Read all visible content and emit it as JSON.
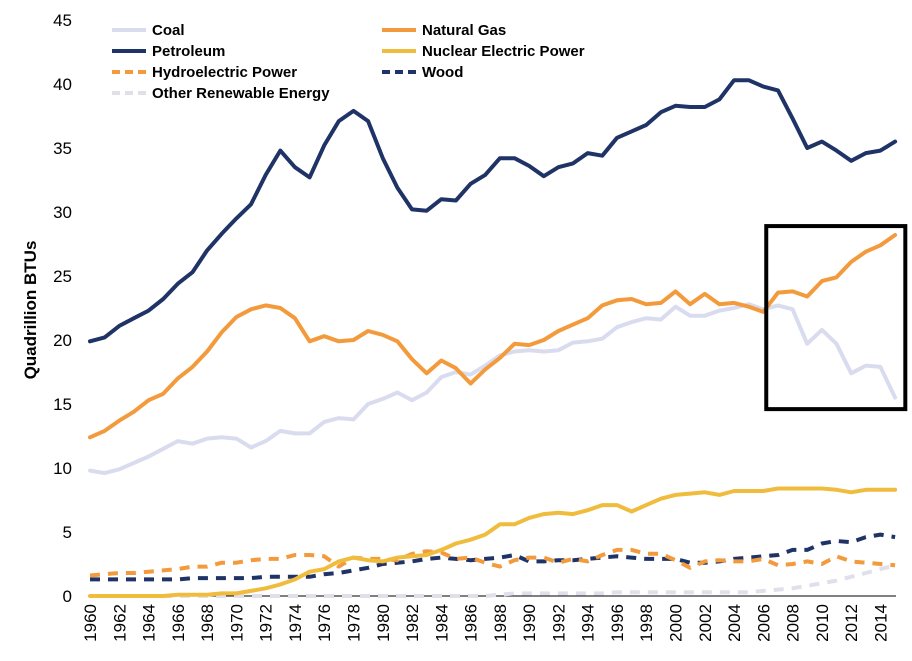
{
  "chart_data": {
    "type": "line",
    "title": "",
    "xlabel": "",
    "ylabel": "Quadrillion BTUs",
    "ylim": [
      0,
      45
    ],
    "yticks": [
      0,
      5,
      10,
      15,
      20,
      25,
      30,
      35,
      40,
      45
    ],
    "xlim": [
      1960,
      2015
    ],
    "xticks": [
      1960,
      1962,
      1964,
      1966,
      1968,
      1970,
      1972,
      1974,
      1976,
      1978,
      1980,
      1982,
      1984,
      1986,
      1988,
      1990,
      1992,
      1994,
      1996,
      1998,
      2000,
      2002,
      2004,
      2006,
      2008,
      2010,
      2012,
      2014
    ],
    "grid": false,
    "legend_position": "top-left",
    "x": [
      1960,
      1961,
      1962,
      1963,
      1964,
      1965,
      1966,
      1967,
      1968,
      1969,
      1970,
      1971,
      1972,
      1973,
      1974,
      1975,
      1976,
      1977,
      1978,
      1979,
      1980,
      1981,
      1982,
      1983,
      1984,
      1985,
      1986,
      1987,
      1988,
      1989,
      1990,
      1991,
      1992,
      1993,
      1994,
      1995,
      1996,
      1997,
      1998,
      1999,
      2000,
      2001,
      2002,
      2003,
      2004,
      2005,
      2006,
      2007,
      2008,
      2009,
      2010,
      2011,
      2012,
      2013,
      2014,
      2015
    ],
    "series": [
      {
        "name": "Coal",
        "color": "#d9dcef",
        "dash": "solid",
        "values": [
          9.8,
          9.6,
          9.9,
          10.4,
          10.9,
          11.5,
          12.1,
          11.9,
          12.3,
          12.4,
          12.3,
          11.6,
          12.1,
          12.9,
          12.7,
          12.7,
          13.6,
          13.9,
          13.8,
          15.0,
          15.4,
          15.9,
          15.3,
          15.9,
          17.1,
          17.5,
          17.3,
          18.0,
          18.8,
          19.1,
          19.2,
          19.1,
          19.2,
          19.8,
          19.9,
          20.1,
          21.0,
          21.4,
          21.7,
          21.6,
          22.6,
          21.9,
          21.9,
          22.3,
          22.5,
          22.8,
          22.4,
          22.7,
          22.4,
          19.7,
          20.8,
          19.7,
          17.4,
          18.0,
          17.9,
          15.5
        ]
      },
      {
        "name": "Natural Gas",
        "color": "#f39b3c",
        "dash": "solid",
        "values": [
          12.4,
          12.9,
          13.7,
          14.4,
          15.3,
          15.8,
          17.0,
          17.9,
          19.1,
          20.6,
          21.8,
          22.4,
          22.7,
          22.5,
          21.7,
          19.9,
          20.3,
          19.9,
          20.0,
          20.7,
          20.4,
          19.9,
          18.5,
          17.4,
          18.4,
          17.8,
          16.6,
          17.7,
          18.6,
          19.7,
          19.6,
          20.0,
          20.7,
          21.2,
          21.7,
          22.7,
          23.1,
          23.2,
          22.8,
          22.9,
          23.8,
          22.8,
          23.6,
          22.8,
          22.9,
          22.6,
          22.2,
          23.7,
          23.8,
          23.4,
          24.6,
          24.9,
          26.1,
          26.9,
          27.4,
          28.2
        ]
      },
      {
        "name": "Petroleum",
        "color": "#1f3366",
        "dash": "solid",
        "values": [
          19.9,
          20.2,
          21.1,
          21.7,
          22.3,
          23.2,
          24.4,
          25.3,
          27.0,
          28.3,
          29.5,
          30.6,
          32.9,
          34.8,
          33.5,
          32.7,
          35.2,
          37.1,
          37.9,
          37.1,
          34.2,
          31.9,
          30.2,
          30.1,
          31.0,
          30.9,
          32.2,
          32.9,
          34.2,
          34.2,
          33.6,
          32.8,
          33.5,
          33.8,
          34.6,
          34.4,
          35.8,
          36.3,
          36.8,
          37.8,
          38.3,
          38.2,
          38.2,
          38.8,
          40.3,
          40.3,
          39.8,
          39.5,
          37.3,
          35.0,
          35.5,
          34.8,
          34.0,
          34.6,
          34.8,
          35.5
        ]
      },
      {
        "name": "Nuclear Electric Power",
        "color": "#f0bc3d",
        "dash": "solid",
        "values": [
          0.0,
          0.0,
          0.0,
          0.0,
          0.0,
          0.0,
          0.1,
          0.1,
          0.1,
          0.2,
          0.2,
          0.4,
          0.6,
          0.9,
          1.3,
          1.9,
          2.1,
          2.7,
          3.0,
          2.8,
          2.7,
          3.0,
          3.1,
          3.2,
          3.6,
          4.1,
          4.4,
          4.8,
          5.6,
          5.6,
          6.1,
          6.4,
          6.5,
          6.4,
          6.7,
          7.1,
          7.1,
          6.6,
          7.1,
          7.6,
          7.9,
          8.0,
          8.1,
          7.9,
          8.2,
          8.2,
          8.2,
          8.4,
          8.4,
          8.4,
          8.4,
          8.3,
          8.1,
          8.3,
          8.3,
          8.3
        ]
      },
      {
        "name": "Hydroelectric Power",
        "color": "#f39b3c",
        "dash": "dashed",
        "values": [
          1.6,
          1.7,
          1.8,
          1.8,
          1.9,
          2.0,
          2.1,
          2.3,
          2.3,
          2.6,
          2.6,
          2.8,
          2.9,
          2.9,
          3.2,
          3.2,
          3.1,
          2.3,
          3.0,
          2.9,
          2.9,
          2.8,
          3.3,
          3.5,
          3.4,
          2.9,
          3.0,
          2.6,
          2.3,
          2.8,
          3.0,
          3.0,
          2.6,
          2.9,
          2.7,
          3.2,
          3.6,
          3.6,
          3.3,
          3.3,
          2.8,
          2.2,
          2.7,
          2.8,
          2.7,
          2.7,
          2.9,
          2.4,
          2.5,
          2.7,
          2.5,
          3.1,
          2.7,
          2.6,
          2.5,
          2.4
        ]
      },
      {
        "name": "Wood",
        "color": "#1f3366",
        "dash": "dashed",
        "values": [
          1.3,
          1.3,
          1.3,
          1.3,
          1.3,
          1.3,
          1.3,
          1.4,
          1.4,
          1.4,
          1.4,
          1.4,
          1.5,
          1.5,
          1.5,
          1.5,
          1.7,
          1.8,
          2.0,
          2.2,
          2.5,
          2.6,
          2.7,
          2.9,
          3.0,
          2.9,
          2.8,
          2.9,
          3.0,
          3.2,
          2.7,
          2.7,
          2.8,
          2.8,
          2.9,
          3.0,
          3.1,
          3.0,
          2.9,
          2.9,
          2.9,
          2.6,
          2.6,
          2.7,
          2.9,
          3.0,
          3.1,
          3.2,
          3.6,
          3.6,
          4.1,
          4.3,
          4.2,
          4.6,
          4.8,
          4.6
        ]
      },
      {
        "name": "Other Renewable Energy",
        "color": "#e0e0ea",
        "dash": "dashed",
        "values": [
          0.0,
          0.0,
          0.0,
          0.0,
          0.0,
          0.0,
          0.0,
          0.0,
          0.0,
          0.0,
          0.0,
          0.0,
          0.0,
          0.0,
          0.0,
          0.0,
          0.0,
          0.0,
          0.0,
          0.0,
          0.0,
          0.0,
          0.0,
          0.0,
          0.0,
          0.0,
          0.0,
          0.0,
          0.1,
          0.2,
          0.2,
          0.2,
          0.2,
          0.2,
          0.2,
          0.2,
          0.3,
          0.3,
          0.3,
          0.3,
          0.3,
          0.3,
          0.3,
          0.3,
          0.3,
          0.3,
          0.4,
          0.5,
          0.6,
          0.8,
          1.0,
          1.2,
          1.5,
          1.8,
          2.1,
          2.4
        ]
      }
    ],
    "highlight_box": {
      "x_range": [
        2006.2,
        2015.7
      ],
      "y_range": [
        14.6,
        28.9
      ],
      "color": "#000000"
    }
  }
}
